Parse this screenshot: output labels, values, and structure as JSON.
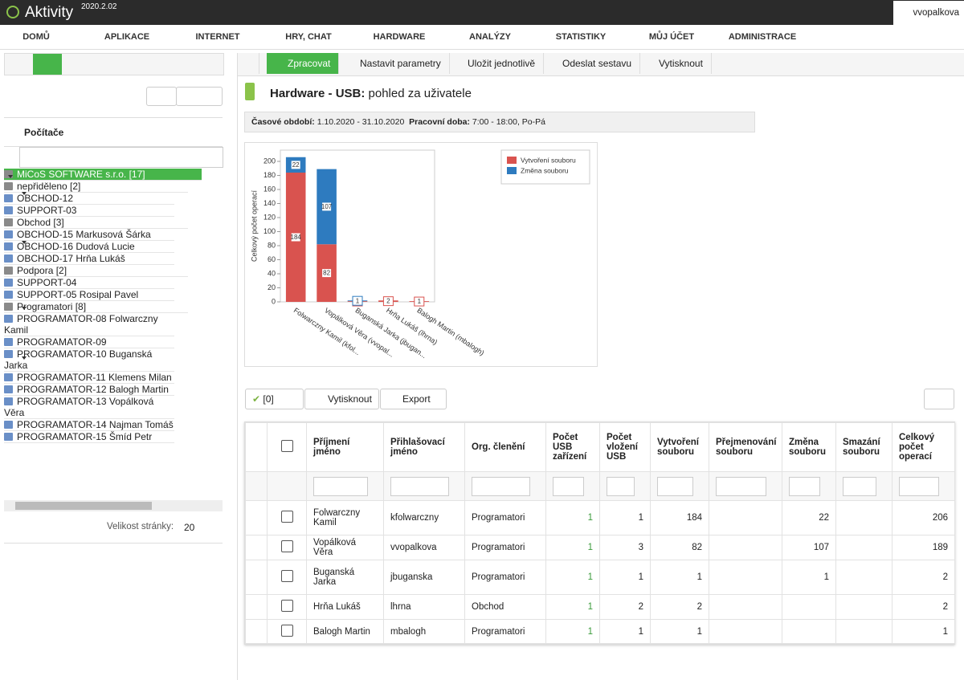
{
  "app": {
    "name": "Aktivity",
    "version": "2020.2.02",
    "user": "vvopalkova"
  },
  "menu": [
    "DOMŮ",
    "APLIKACE",
    "INTERNET",
    "HRY, CHAT",
    "HARDWARE",
    "ANALÝZY",
    "STATISTIKY",
    "MŮJ ÚČET",
    "ADMINISTRACE"
  ],
  "sidebar": {
    "title": "Počítače",
    "tree": [
      {
        "label": "MiCoS SOFTWARE s.r.o. [17]",
        "children": [
          {
            "label": "nepřiděleno [2]",
            "children": [
              {
                "label": "OBCHOD-12"
              },
              {
                "label": "SUPPORT-03"
              }
            ]
          },
          {
            "label": "Obchod [3]",
            "children": [
              {
                "label": "OBCHOD-15 Markusová Šárka"
              },
              {
                "label": "OBCHOD-16 Dudová Lucie"
              },
              {
                "label": "OBCHOD-17 Hrňa Lukáš"
              }
            ]
          },
          {
            "label": "Podpora [2]",
            "children": [
              {
                "label": "SUPPORT-04"
              },
              {
                "label": "SUPPORT-05 Rosipal Pavel"
              }
            ]
          },
          {
            "label": "Programatori [8]",
            "children": [
              {
                "label": "PROGRAMATOR-08 Folwarczny Kamil"
              },
              {
                "label": "PROGRAMATOR-09"
              },
              {
                "label": "PROGRAMATOR-10 Buganská Jarka"
              },
              {
                "label": "PROGRAMATOR-11 Klemens Milan"
              },
              {
                "label": "PROGRAMATOR-12 Balogh Martin"
              },
              {
                "label": "PROGRAMATOR-13 Vopálková Věra"
              },
              {
                "label": "PROGRAMATOR-14 Najman Tomáš"
              },
              {
                "label": "PROGRAMATOR-15 Šmíd Petr"
              }
            ]
          }
        ]
      }
    ],
    "page_size_label": "Velikost stránky:",
    "page_size": 20
  },
  "toolbar": [
    "Zpracovat",
    "Nastavit parametry",
    "Uložit jednotlivě",
    "Odeslat sestavu",
    "Vytisknout"
  ],
  "report": {
    "title_bold": "Hardware - USB:",
    "title_rest": "pohled za uživatele",
    "period_label": "Časové období:",
    "period": "1.10.2020 - 31.10.2020",
    "hours_label": "Pracovní doba:",
    "hours": "7:00 - 18:00, Po-Pá"
  },
  "chart_data": {
    "type": "stacked-bar",
    "y_label": "Celkový počet operací",
    "categories": [
      "Folwarczny Kamil (kfol...",
      "Vopálková Věra (vvopal...",
      "Buganská Jarka (jbugan...",
      "Hrňa Lukáš (lhrna)",
      "Balogh Martin (mbalogh)"
    ],
    "series": [
      {
        "name": "Vytvoření souboru",
        "color": "#d9534f",
        "values": [
          184,
          82,
          1,
          2,
          1
        ]
      },
      {
        "name": "Změna souboru",
        "color": "#2e7bbf",
        "values": [
          22,
          107,
          1,
          null,
          null
        ]
      }
    ],
    "ylim": [
      0,
      216
    ],
    "yticks": [
      0,
      20,
      40,
      60,
      80,
      100,
      120,
      140,
      160,
      180,
      200
    ]
  },
  "grid": {
    "toolbar": {
      "selected": "[0]",
      "print": "Vytisknout",
      "export": "Export"
    },
    "columns": [
      "Příjmení jméno",
      "Přihlašovací jméno",
      "Org. členění",
      "Počet USB zařízení",
      "Počet vložení USB",
      "Vytvoření souboru",
      "Přejmenování souboru",
      "Změna souboru",
      "Smazání souboru",
      "Celkový počet operací"
    ],
    "rows": [
      [
        "Folwarczny Kamil",
        "kfolwarczny",
        "Programatori",
        1,
        1,
        184,
        null,
        22,
        null,
        206
      ],
      [
        "Vopálková Věra",
        "vvopalkova",
        "Programatori",
        1,
        3,
        82,
        null,
        107,
        null,
        189
      ],
      [
        "Buganská Jarka",
        "jbuganska",
        "Programatori",
        1,
        1,
        1,
        null,
        1,
        null,
        2
      ],
      [
        "Hrňa Lukáš",
        "lhrna",
        "Obchod",
        1,
        2,
        2,
        null,
        null,
        null,
        2
      ],
      [
        "Balogh Martin",
        "mbalogh",
        "Programatori",
        1,
        1,
        1,
        null,
        null,
        null,
        1
      ]
    ]
  }
}
